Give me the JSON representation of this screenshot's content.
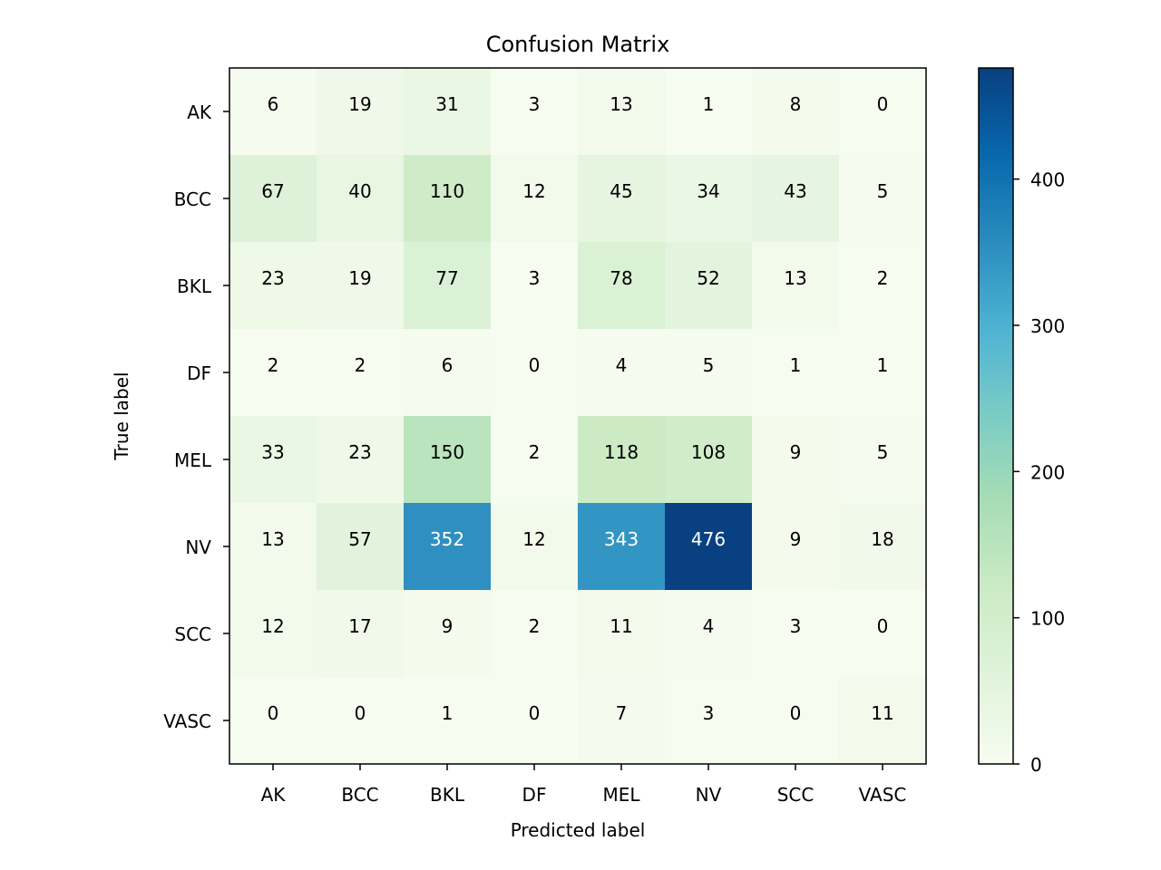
{
  "chart_data": {
    "type": "heatmap",
    "title": "Confusion Matrix",
    "xlabel": "Predicted label",
    "ylabel": "True label",
    "x_categories": [
      "AK",
      "BCC",
      "BKL",
      "DF",
      "MEL",
      "NV",
      "SCC",
      "VASC"
    ],
    "y_categories": [
      "AK",
      "BCC",
      "BKL",
      "DF",
      "MEL",
      "NV",
      "SCC",
      "VASC"
    ],
    "values": [
      [
        6,
        19,
        31,
        3,
        13,
        1,
        8,
        0
      ],
      [
        67,
        40,
        110,
        12,
        45,
        34,
        43,
        5
      ],
      [
        23,
        19,
        77,
        3,
        78,
        52,
        13,
        2
      ],
      [
        2,
        2,
        6,
        0,
        4,
        5,
        1,
        1
      ],
      [
        33,
        23,
        150,
        2,
        118,
        108,
        9,
        5
      ],
      [
        13,
        57,
        352,
        12,
        343,
        476,
        9,
        18
      ],
      [
        12,
        17,
        9,
        2,
        11,
        4,
        3,
        0
      ],
      [
        0,
        0,
        1,
        0,
        7,
        3,
        0,
        11
      ]
    ],
    "colormap": "GnBu",
    "vmin": 0,
    "vmax": 476,
    "colorbar_ticks": [
      0,
      100,
      200,
      300,
      400
    ],
    "text_color_dark": "#000000",
    "text_color_light": "#ffffff"
  }
}
